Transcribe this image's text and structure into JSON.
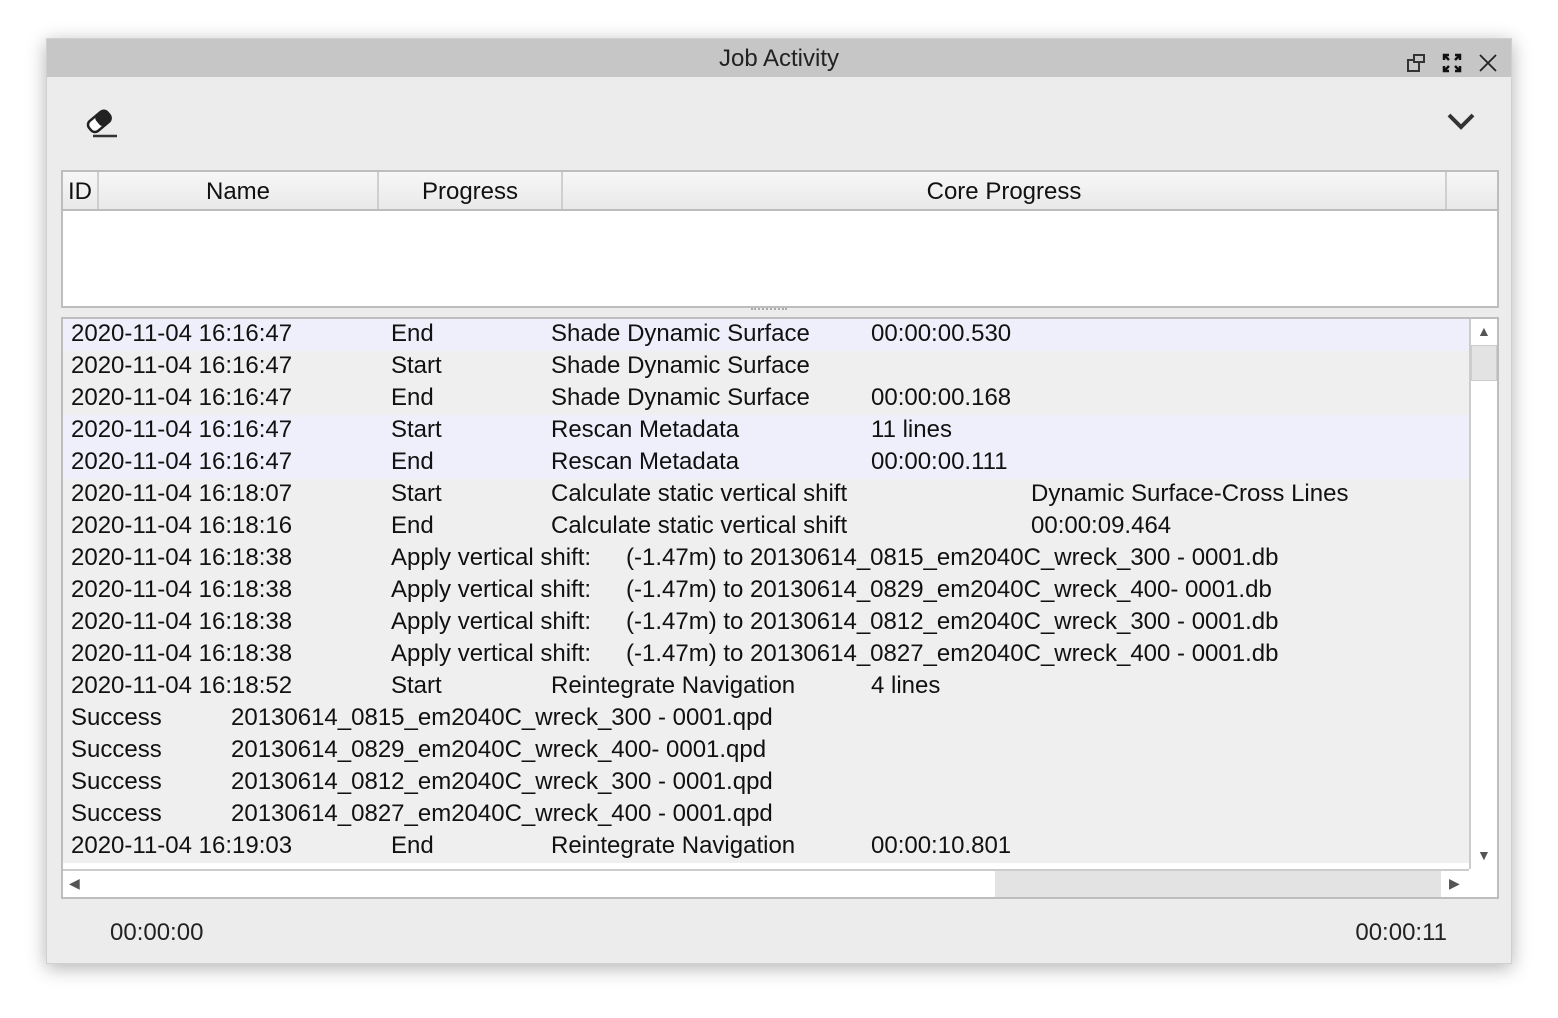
{
  "window": {
    "title": "Job Activity"
  },
  "toolbar": {
    "clear_icon": "eraser-icon",
    "menu_icon": "chevron-down-icon"
  },
  "jobs_table": {
    "columns": [
      "ID",
      "Name",
      "Progress",
      "Core Progress",
      ""
    ],
    "rows": []
  },
  "log": {
    "rows": [
      {
        "kind": "event",
        "highlight": true,
        "cells": [
          "2020-11-04 16:16:47",
          "End",
          "Shade Dynamic Surface",
          "00:00:00.530",
          ""
        ]
      },
      {
        "kind": "event",
        "highlight": false,
        "cells": [
          "2020-11-04 16:16:47",
          "Start",
          "Shade Dynamic Surface",
          "",
          ""
        ]
      },
      {
        "kind": "event",
        "highlight": false,
        "cells": [
          "2020-11-04 16:16:47",
          "End",
          "Shade Dynamic Surface",
          "00:00:00.168",
          ""
        ]
      },
      {
        "kind": "event",
        "highlight": true,
        "cells": [
          "2020-11-04 16:16:47",
          "Start",
          "Rescan Metadata",
          "11 lines",
          ""
        ]
      },
      {
        "kind": "event",
        "highlight": true,
        "cells": [
          "2020-11-04 16:16:47",
          "End",
          "Rescan Metadata",
          "00:00:00.111",
          ""
        ]
      },
      {
        "kind": "event",
        "highlight": false,
        "cells": [
          "2020-11-04 16:18:07",
          "Start",
          "Calculate static vertical shift",
          "",
          "Dynamic Surface-Cross Lines"
        ]
      },
      {
        "kind": "event",
        "highlight": false,
        "cells": [
          "2020-11-04 16:18:16",
          "End",
          "Calculate static vertical shift",
          "",
          "00:00:09.464"
        ]
      },
      {
        "kind": "apply",
        "highlight": false,
        "cells": [
          "2020-11-04 16:18:38",
          "Apply vertical shift:",
          "(-1.47m) to 20130614_0815_em2040C_wreck_300 - 0001.db"
        ]
      },
      {
        "kind": "apply",
        "highlight": false,
        "cells": [
          "2020-11-04 16:18:38",
          "Apply vertical shift:",
          "(-1.47m) to 20130614_0829_em2040C_wreck_400- 0001.db"
        ]
      },
      {
        "kind": "apply",
        "highlight": false,
        "cells": [
          "2020-11-04 16:18:38",
          "Apply vertical shift:",
          "(-1.47m) to 20130614_0812_em2040C_wreck_300 - 0001.db"
        ]
      },
      {
        "kind": "apply",
        "highlight": false,
        "cells": [
          "2020-11-04 16:18:38",
          "Apply vertical shift:",
          "(-1.47m) to 20130614_0827_em2040C_wreck_400 - 0001.db"
        ]
      },
      {
        "kind": "event",
        "highlight": false,
        "cells": [
          "2020-11-04 16:18:52",
          "Start",
          "Reintegrate Navigation",
          "4 lines",
          ""
        ]
      },
      {
        "kind": "status",
        "highlight": false,
        "cells": [
          "Success",
          "20130614_0815_em2040C_wreck_300 - 0001.qpd"
        ]
      },
      {
        "kind": "status",
        "highlight": false,
        "cells": [
          "Success",
          "20130614_0829_em2040C_wreck_400- 0001.qpd"
        ]
      },
      {
        "kind": "status",
        "highlight": false,
        "cells": [
          "Success",
          "20130614_0812_em2040C_wreck_300 - 0001.qpd"
        ]
      },
      {
        "kind": "status",
        "highlight": false,
        "cells": [
          "Success",
          "20130614_0827_em2040C_wreck_400 - 0001.qpd"
        ]
      },
      {
        "kind": "event",
        "highlight": false,
        "cells": [
          "2020-11-04 16:19:03",
          "End",
          "Reintegrate Navigation",
          "00:00:10.801",
          ""
        ]
      }
    ]
  },
  "footer": {
    "start_time": "00:00:00",
    "end_time": "00:00:11"
  }
}
